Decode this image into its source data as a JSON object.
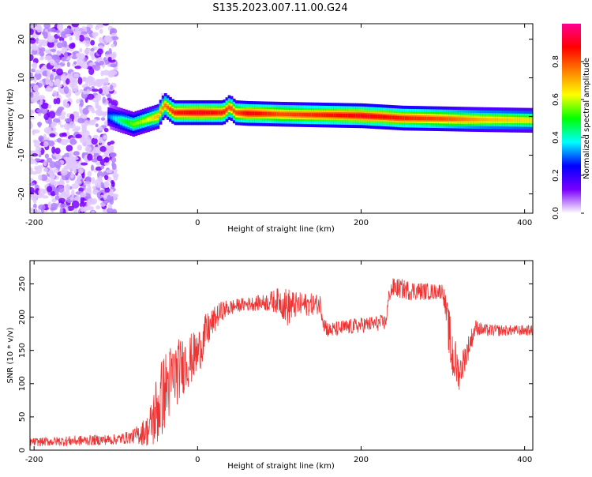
{
  "title": "S135.2023.007.11.00.G24",
  "colorbar": {
    "label": "Normalized spectral amplitude",
    "ticks": [
      "0.0",
      "0.2",
      "0.4",
      "0.6",
      "0.8"
    ],
    "colors": [
      "#ffffff",
      "#7a00ff",
      "#0000ff",
      "#00ffff",
      "#00ff00",
      "#ffff00",
      "#ff8000",
      "#ff0000",
      "#ff0090"
    ]
  },
  "chart_data": [
    {
      "type": "heatmap",
      "title": "S135.2023.007.11.00.G24",
      "xlabel": "Height of straight line (km)",
      "ylabel": "Frequency (Hz)",
      "xlim": [
        -205,
        410
      ],
      "ylim": [
        -25,
        24
      ],
      "xticks": [
        "-200",
        "0",
        "200",
        "400"
      ],
      "xtick_values": [
        -200,
        0,
        200,
        400
      ],
      "yticks": [
        "20",
        "10",
        "0",
        "-10",
        "-20"
      ],
      "ytick_values": [
        20,
        10,
        0,
        -10,
        -20
      ],
      "ridge": {
        "x": [
          -205,
          -150,
          -110,
          -95,
          -80,
          -65,
          -50,
          -42,
          -30,
          0,
          30,
          38,
          45,
          60,
          100,
          150,
          200,
          250,
          300,
          350,
          410
        ],
        "y": [
          0,
          0,
          0,
          -1,
          -2,
          -1,
          0,
          3,
          1,
          1,
          1,
          2.5,
          1,
          0.8,
          0.6,
          0.4,
          0.2,
          -0.4,
          -0.6,
          -0.8,
          -1
        ],
        "amplitude": [
          0.1,
          0.15,
          0.3,
          0.45,
          0.55,
          0.6,
          0.7,
          0.75,
          0.85,
          0.9,
          0.85,
          0.8,
          0.8,
          0.9,
          0.8,
          0.85,
          0.9,
          0.85,
          0.8,
          0.7,
          0.65
        ]
      },
      "noise_region_x": [
        -205,
        -100
      ]
    },
    {
      "type": "line",
      "xlabel": "Height of straight line (km)",
      "ylabel": "SNR (10 * v/v)",
      "xlim": [
        -205,
        410
      ],
      "ylim": [
        0,
        285
      ],
      "xticks": [
        "-200",
        "0",
        "200",
        "400"
      ],
      "xtick_values": [
        -200,
        0,
        200,
        400
      ],
      "yticks": [
        "250",
        "200",
        "150",
        "100",
        "50",
        "0"
      ],
      "ytick_values": [
        250,
        200,
        150,
        100,
        50,
        0
      ],
      "color": "#ee3333",
      "x": [
        -205,
        -150,
        -100,
        -80,
        -60,
        -50,
        -40,
        -30,
        -20,
        -10,
        0,
        10,
        20,
        30,
        50,
        80,
        100,
        110,
        120,
        150,
        155,
        160,
        200,
        230,
        235,
        240,
        260,
        290,
        300,
        305,
        310,
        320,
        330,
        340,
        350,
        380,
        410
      ],
      "y": [
        12,
        14,
        16,
        20,
        30,
        60,
        90,
        110,
        125,
        135,
        145,
        175,
        195,
        210,
        218,
        222,
        225,
        215,
        218,
        220,
        190,
        180,
        188,
        192,
        238,
        245,
        240,
        238,
        240,
        200,
        150,
        115,
        150,
        185,
        180,
        180,
        180
      ],
      "noise_amplitude": [
        6,
        8,
        8,
        10,
        25,
        60,
        60,
        55,
        45,
        40,
        35,
        30,
        20,
        15,
        10,
        12,
        20,
        30,
        20,
        15,
        15,
        12,
        12,
        12,
        15,
        15,
        15,
        12,
        12,
        25,
        50,
        25,
        20,
        12,
        10,
        8,
        8
      ]
    }
  ]
}
